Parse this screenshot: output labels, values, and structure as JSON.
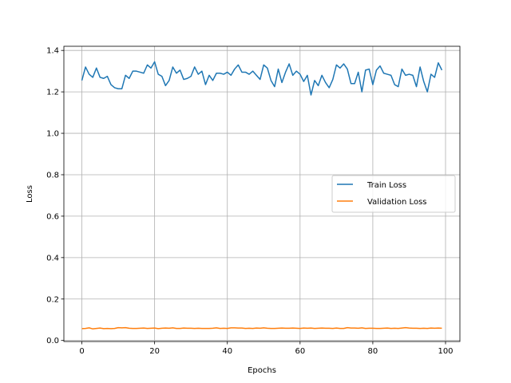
{
  "chart_data": {
    "type": "line",
    "title": "",
    "xlabel": "Epochs",
    "ylabel": "Loss",
    "xlim": [
      -4.95,
      103.95
    ],
    "ylim": [
      -0.005,
      1.42
    ],
    "grid": true,
    "legend_position": "center-right",
    "x_ticks": [
      0,
      20,
      40,
      60,
      80,
      100
    ],
    "y_ticks": [
      0.0,
      0.2,
      0.4,
      0.6,
      0.8,
      1.0,
      1.2,
      1.4
    ],
    "x_tick_labels": [
      "0",
      "20",
      "40",
      "60",
      "80",
      "100"
    ],
    "y_tick_labels": [
      "0.0",
      "0.2",
      "0.4",
      "0.6",
      "0.8",
      "1.0",
      "1.2",
      "1.4"
    ],
    "series": [
      {
        "name": "Train Loss",
        "color": "#1f77b4",
        "values": [
          1.255,
          1.32,
          1.285,
          1.27,
          1.315,
          1.27,
          1.265,
          1.275,
          1.235,
          1.22,
          1.215,
          1.215,
          1.28,
          1.265,
          1.3,
          1.3,
          1.295,
          1.29,
          1.33,
          1.315,
          1.345,
          1.285,
          1.275,
          1.23,
          1.255,
          1.32,
          1.29,
          1.305,
          1.26,
          1.265,
          1.275,
          1.32,
          1.285,
          1.3,
          1.235,
          1.28,
          1.255,
          1.29,
          1.29,
          1.285,
          1.295,
          1.28,
          1.31,
          1.33,
          1.295,
          1.295,
          1.285,
          1.3,
          1.28,
          1.26,
          1.33,
          1.315,
          1.255,
          1.225,
          1.31,
          1.245,
          1.295,
          1.335,
          1.28,
          1.3,
          1.285,
          1.25,
          1.28,
          1.185,
          1.255,
          1.23,
          1.28,
          1.245,
          1.22,
          1.26,
          1.33,
          1.315,
          1.335,
          1.31,
          1.24,
          1.24,
          1.295,
          1.2,
          1.305,
          1.31,
          1.235,
          1.305,
          1.325,
          1.29,
          1.285,
          1.28,
          1.235,
          1.225,
          1.31,
          1.28,
          1.285,
          1.28,
          1.225,
          1.32,
          1.25,
          1.2,
          1.285,
          1.27,
          1.34,
          1.305
        ]
      },
      {
        "name": "Validation Loss",
        "color": "#ff7f0e",
        "values": [
          0.057,
          0.058,
          0.061,
          0.056,
          0.058,
          0.06,
          0.057,
          0.058,
          0.057,
          0.058,
          0.062,
          0.061,
          0.062,
          0.059,
          0.058,
          0.058,
          0.059,
          0.06,
          0.058,
          0.059,
          0.06,
          0.057,
          0.059,
          0.06,
          0.059,
          0.061,
          0.058,
          0.058,
          0.06,
          0.059,
          0.059,
          0.058,
          0.059,
          0.058,
          0.058,
          0.058,
          0.059,
          0.061,
          0.058,
          0.059,
          0.058,
          0.061,
          0.061,
          0.06,
          0.06,
          0.058,
          0.059,
          0.058,
          0.06,
          0.059,
          0.061,
          0.059,
          0.058,
          0.058,
          0.059,
          0.06,
          0.059,
          0.059,
          0.06,
          0.059,
          0.058,
          0.06,
          0.059,
          0.06,
          0.058,
          0.059,
          0.06,
          0.059,
          0.059,
          0.058,
          0.06,
          0.058,
          0.058,
          0.062,
          0.06,
          0.06,
          0.059,
          0.061,
          0.058,
          0.059,
          0.059,
          0.058,
          0.058,
          0.059,
          0.06,
          0.058,
          0.059,
          0.058,
          0.06,
          0.062,
          0.06,
          0.059,
          0.059,
          0.058,
          0.059,
          0.058,
          0.06,
          0.059,
          0.06,
          0.059
        ]
      }
    ]
  }
}
